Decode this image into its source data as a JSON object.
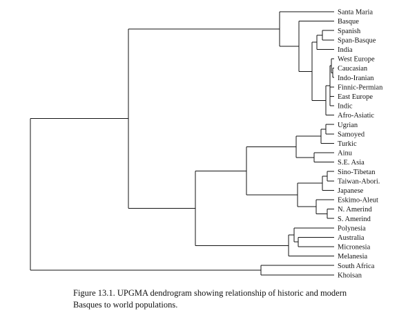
{
  "figure": {
    "caption_line1": "Figure 13.1.  UPGMA dendrogram showing relationship of historic and modern",
    "caption_line2": "Basques to world populations."
  },
  "dendrogram": {
    "leaves": [
      "Santa Maria",
      "Basque",
      "Spanish",
      "Span-Basque",
      "India",
      "West Europe",
      "Caucasian",
      "Indo-Iranian",
      "Finnic-Permian",
      "East Europe",
      "Indic",
      "Afro-Asiatic",
      "Ugrian",
      "Samoyed",
      "Turkic",
      "Ainu",
      "S.E. Asia",
      "Sino-Tibetan",
      "Taiwan-Abori.",
      "Japanese",
      "Eskimo-Aleut",
      "N. Amerind",
      "S. Amerind",
      "Polynesia",
      "Australia",
      "Micronesia",
      "Melanesia",
      "South Africa",
      "Khoisan"
    ]
  }
}
